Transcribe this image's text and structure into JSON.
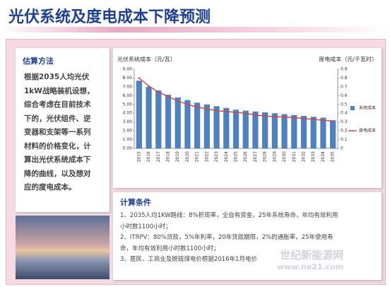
{
  "title": "光伏系统及度电成本下降预测",
  "method": {
    "heading": "估算方法",
    "lines": [
      "根据2035人均光伏",
      "1kW战略装机设想，",
      "综合考虑在目前技术",
      "下的，光伏组件、逆",
      "变器和支架等一系列",
      "材料的价格变化，计",
      "算出光伏系统成本下",
      "降的曲线，以及想对",
      "应的度电成本。"
    ]
  },
  "conditions": {
    "heading": "计算条件",
    "lines": [
      "1、2035人均1KW路线：8%折现率，全自有资金，25年系统寿命，年均有效利用",
      "小时数1100小时；",
      "2、ITRPV：80%贷款，5%年利率，20年贷款期限，2%的通胀率，25年使用寿",
      "命，年均有效利用小时数1100小时；",
      "3、居民、工商业及脱硫煤电价根据2016年1月电价"
    ]
  },
  "watermark": {
    "line1": "世纪新能源网",
    "line2": "www.ne21.com"
  },
  "chart_data": {
    "type": "bar_line",
    "ylabel": "光伏系统成本（元/瓦）",
    "y2label": "度电成本（元/千瓦时）",
    "categories": [
      "2015",
      "2016",
      "2017",
      "2018",
      "2019",
      "2020",
      "2021",
      "2022",
      "2023",
      "2024",
      "2025",
      "2026",
      "2027",
      "2028",
      "2029",
      "2030",
      "2031",
      "2032",
      "2033",
      "2034",
      "2035"
    ],
    "series": [
      {
        "name": "系统成本",
        "color": "#4f81bd",
        "type": "bar",
        "values": [
          7.7,
          7.0,
          6.6,
          6.1,
          5.8,
          5.5,
          5.2,
          5.0,
          4.8,
          4.6,
          4.4,
          4.3,
          4.2,
          4.1,
          4.0,
          3.9,
          3.8,
          3.7,
          3.6,
          3.5,
          3.2
        ]
      },
      {
        "name": "度电成本",
        "color": "#c0504d",
        "type": "line",
        "axis": "y2",
        "values": [
          0.8,
          0.71,
          0.64,
          0.59,
          0.54,
          0.5,
          0.47,
          0.45,
          0.43,
          0.42,
          0.41,
          0.4,
          0.38,
          0.37,
          0.36,
          0.36,
          0.35,
          0.34,
          0.33,
          0.32,
          0.31
        ]
      }
    ],
    "ylim": [
      0,
      9
    ],
    "yticks": [
      {
        "value": 0,
        "label": "0.00"
      },
      {
        "value": 1,
        "label": "1.00"
      },
      {
        "value": 2,
        "label": "2.00"
      },
      {
        "value": 3,
        "label": "3.00"
      },
      {
        "value": 4,
        "label": "4.00"
      },
      {
        "value": 5,
        "label": "5.00"
      },
      {
        "value": 6,
        "label": "6.00"
      },
      {
        "value": 7,
        "label": "7.00"
      },
      {
        "value": 8,
        "label": "8.00"
      },
      {
        "value": 9,
        "label": "9.00"
      }
    ],
    "y2lim": [
      0,
      0.9
    ],
    "y2ticks": [
      0,
      0.1,
      0.2,
      0.3,
      0.4,
      0.5,
      0.6,
      0.7,
      0.8,
      0.9
    ],
    "grid": false
  }
}
